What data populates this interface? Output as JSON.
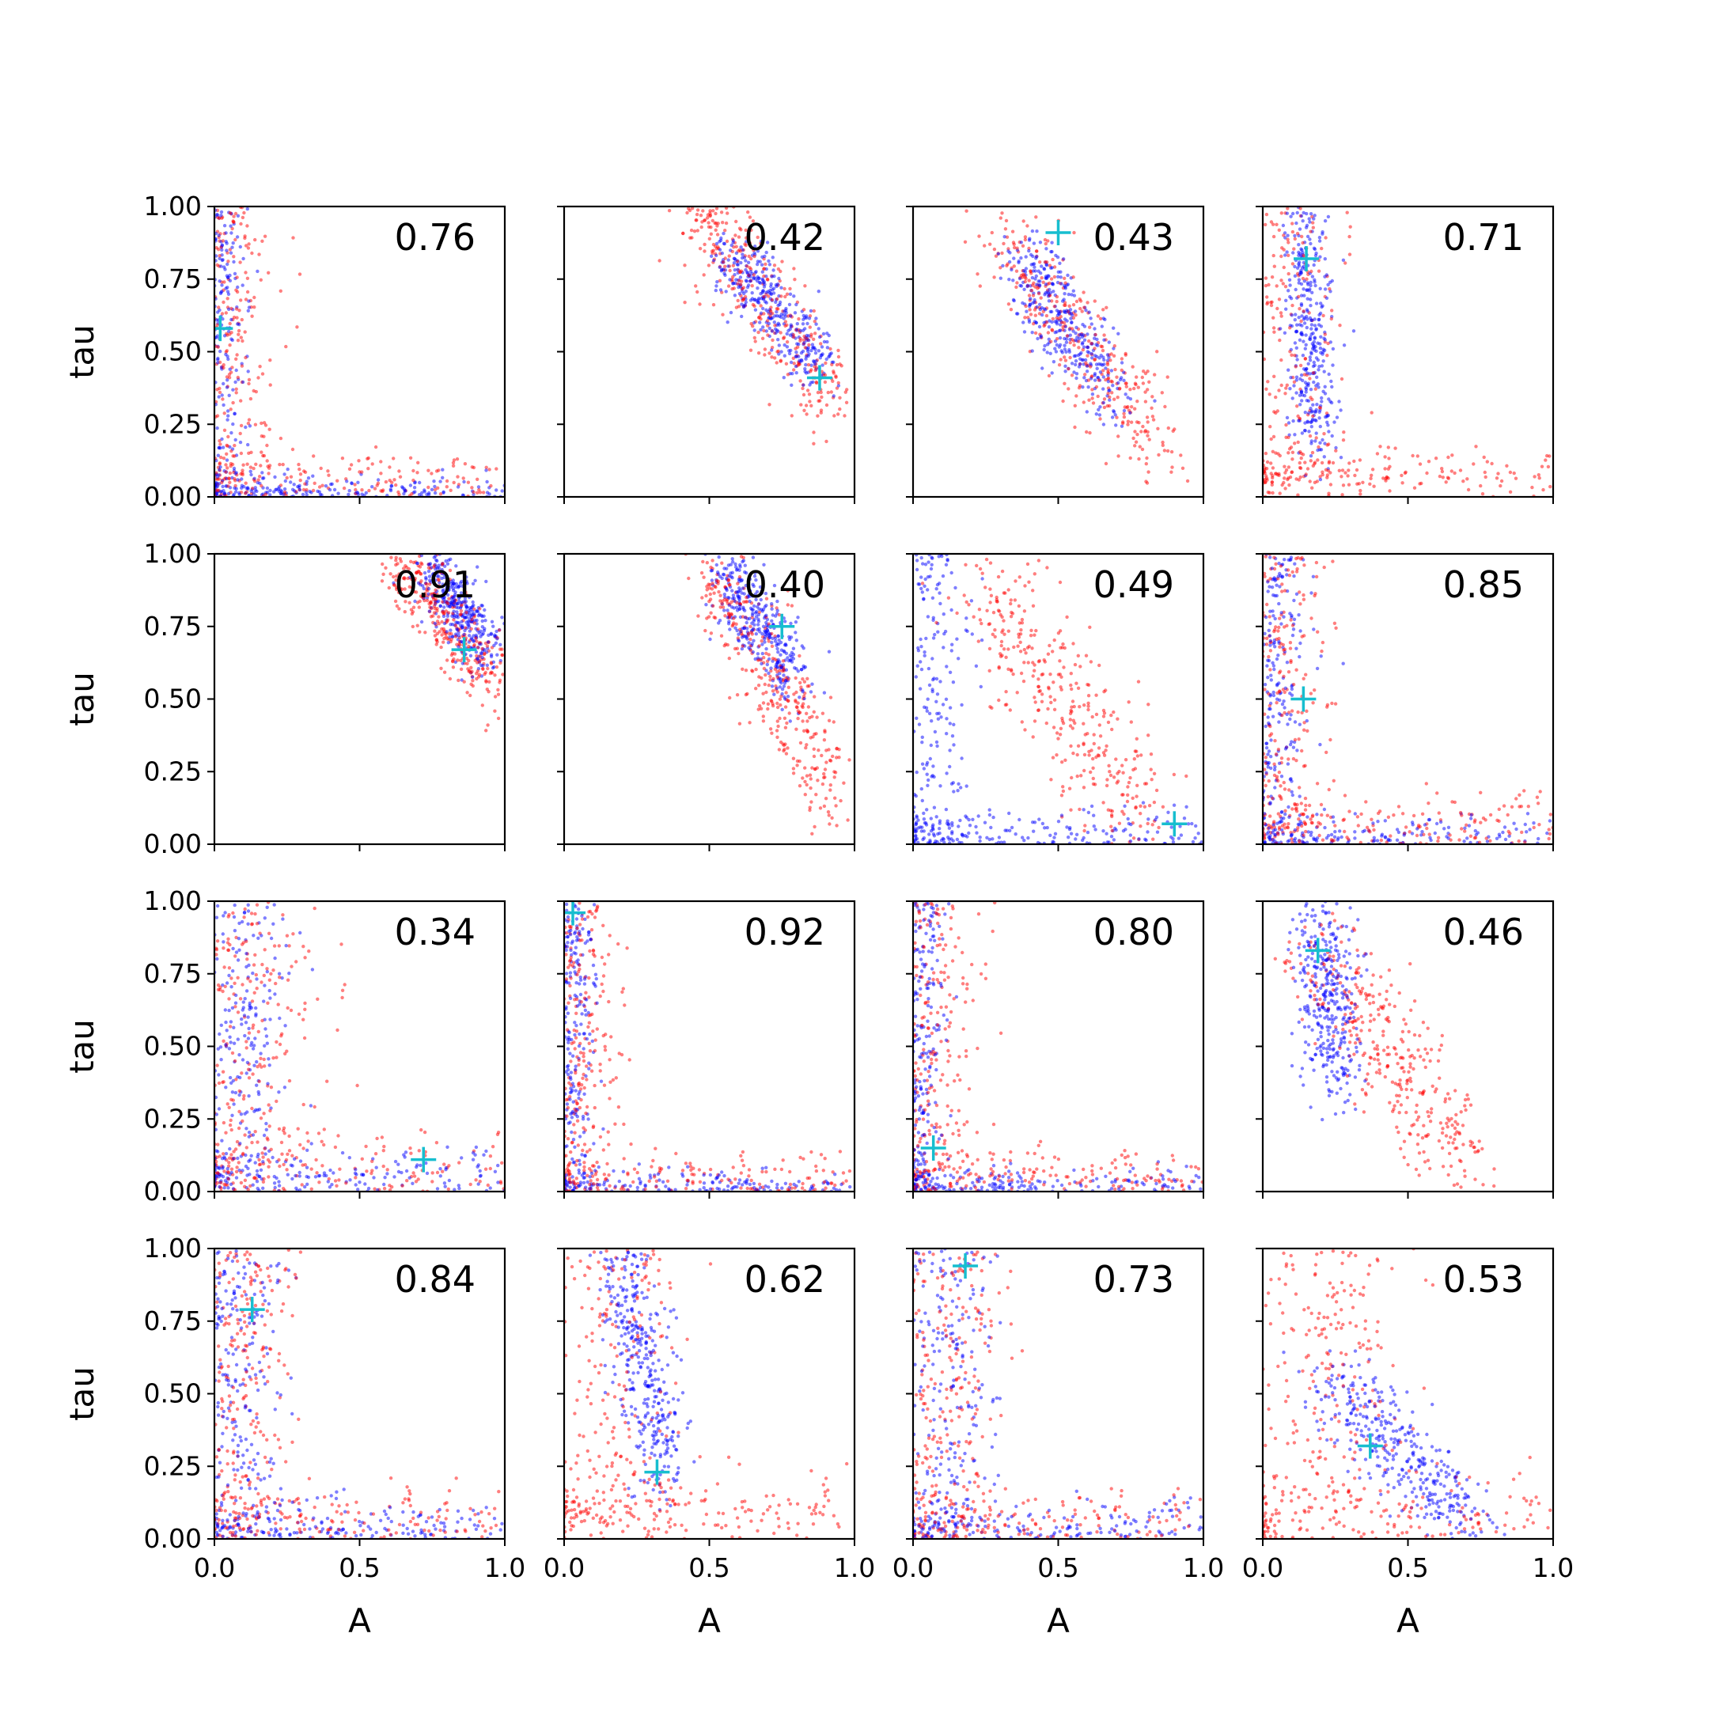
{
  "chart_data": {
    "type": "scatter",
    "layout": {
      "rows": 4,
      "cols": 4,
      "sharex": true,
      "sharey": true
    },
    "xlabel": "A",
    "ylabel": "tau",
    "xlim": [
      0.0,
      1.0
    ],
    "ylim": [
      0.0,
      1.0
    ],
    "x_ticks": [
      0.0,
      0.5,
      1.0
    ],
    "x_tick_labels": [
      "0.0",
      "0.5",
      "1.0"
    ],
    "y_ticks": [
      0.0,
      0.25,
      0.5,
      0.75,
      1.0
    ],
    "y_tick_labels": [
      "0.00",
      "0.25",
      "0.50",
      "0.75",
      "1.00"
    ],
    "grid": false,
    "colors": {
      "series_a": "#0000ff",
      "series_b": "#ff0000",
      "marker": "#17becf"
    },
    "panels": [
      {
        "label": "0.76",
        "marker": [
          0.02,
          0.58
        ],
        "blue": {
          "shape": "L",
          "a0": 0.02,
          "b0": 0.02,
          "spread": 0.03
        },
        "red": {
          "shape": "L",
          "a0": 0.04,
          "b0": 0.05,
          "spread": 0.06
        }
      },
      {
        "label": "0.42",
        "marker": [
          0.88,
          0.41
        ],
        "blue": {
          "shape": "band",
          "from": [
            0.55,
            0.85
          ],
          "to": [
            0.88,
            0.45
          ],
          "sx": 0.04,
          "sy": 0.06
        },
        "red": {
          "shape": "band",
          "from": [
            0.45,
            0.98
          ],
          "to": [
            0.92,
            0.35
          ],
          "sx": 0.05,
          "sy": 0.08
        }
      },
      {
        "label": "0.43",
        "marker": [
          0.5,
          0.91
        ],
        "blue": {
          "shape": "band",
          "from": [
            0.38,
            0.82
          ],
          "to": [
            0.68,
            0.35
          ],
          "sx": 0.05,
          "sy": 0.07
        },
        "red": {
          "shape": "band",
          "from": [
            0.3,
            0.9
          ],
          "to": [
            0.85,
            0.18
          ],
          "sx": 0.06,
          "sy": 0.08
        }
      },
      {
        "label": "0.71",
        "marker": [
          0.15,
          0.82
        ],
        "blue": {
          "shape": "band",
          "from": [
            0.13,
            0.95
          ],
          "to": [
            0.18,
            0.2
          ],
          "sx": 0.04,
          "sy": 0.08
        },
        "red": {
          "shape": "L",
          "a0": 0.12,
          "b0": 0.08,
          "spread": 0.05
        }
      },
      {
        "label": "0.91",
        "marker": [
          0.86,
          0.67
        ],
        "blue": {
          "shape": "band",
          "from": [
            0.75,
            0.95
          ],
          "to": [
            0.95,
            0.65
          ],
          "sx": 0.04,
          "sy": 0.05
        },
        "red": {
          "shape": "band",
          "from": [
            0.62,
            1.0
          ],
          "to": [
            0.97,
            0.55
          ],
          "sx": 0.05,
          "sy": 0.06
        }
      },
      {
        "label": "0.40",
        "marker": [
          0.75,
          0.75
        ],
        "blue": {
          "shape": "band",
          "from": [
            0.55,
            0.95
          ],
          "to": [
            0.8,
            0.55
          ],
          "sx": 0.04,
          "sy": 0.06
        },
        "red": {
          "shape": "band",
          "from": [
            0.5,
            0.95
          ],
          "to": [
            0.95,
            0.15
          ],
          "sx": 0.05,
          "sy": 0.09
        }
      },
      {
        "label": "0.49",
        "marker": [
          0.9,
          0.07
        ],
        "blue": {
          "shape": "L",
          "a0": 0.06,
          "b0": 0.04,
          "spread": 0.04
        },
        "red": {
          "shape": "band",
          "from": [
            0.25,
            0.9
          ],
          "to": [
            0.8,
            0.05
          ],
          "sx": 0.08,
          "sy": 0.1
        }
      },
      {
        "label": "0.85",
        "marker": [
          0.14,
          0.5
        ],
        "blue": {
          "shape": "L",
          "a0": 0.03,
          "b0": 0.03,
          "spread": 0.04
        },
        "red": {
          "shape": "L",
          "a0": 0.06,
          "b0": 0.06,
          "spread": 0.06
        }
      },
      {
        "label": "0.34",
        "marker": [
          0.72,
          0.11
        ],
        "blue": {
          "shape": "L",
          "a0": 0.1,
          "b0": 0.05,
          "spread": 0.05
        },
        "red": {
          "shape": "L",
          "a0": 0.12,
          "b0": 0.08,
          "spread": 0.08
        }
      },
      {
        "label": "0.92",
        "marker": [
          0.03,
          0.96
        ],
        "blue": {
          "shape": "L",
          "a0": 0.02,
          "b0": 0.02,
          "spread": 0.03
        },
        "red": {
          "shape": "L",
          "a0": 0.04,
          "b0": 0.04,
          "spread": 0.05
        }
      },
      {
        "label": "0.80",
        "marker": [
          0.07,
          0.15
        ],
        "blue": {
          "shape": "L",
          "a0": 0.03,
          "b0": 0.02,
          "spread": 0.03
        },
        "red": {
          "shape": "L",
          "a0": 0.06,
          "b0": 0.05,
          "spread": 0.06
        }
      },
      {
        "label": "0.46",
        "marker": [
          0.19,
          0.83
        ],
        "blue": {
          "shape": "band",
          "from": [
            0.2,
            0.95
          ],
          "to": [
            0.25,
            0.4
          ],
          "sx": 0.05,
          "sy": 0.1
        },
        "red": {
          "shape": "band",
          "from": [
            0.2,
            0.85
          ],
          "to": [
            0.7,
            0.08
          ],
          "sx": 0.08,
          "sy": 0.08
        }
      },
      {
        "label": "0.84",
        "marker": [
          0.13,
          0.79
        ],
        "blue": {
          "shape": "L",
          "a0": 0.08,
          "b0": 0.03,
          "spread": 0.05
        },
        "red": {
          "shape": "L",
          "a0": 0.1,
          "b0": 0.06,
          "spread": 0.06
        }
      },
      {
        "label": "0.62",
        "marker": [
          0.32,
          0.23
        ],
        "blue": {
          "shape": "band",
          "from": [
            0.2,
            0.95
          ],
          "to": [
            0.35,
            0.25
          ],
          "sx": 0.05,
          "sy": 0.08
        },
        "red": {
          "shape": "L",
          "a0": 0.2,
          "b0": 0.1,
          "spread": 0.07
        }
      },
      {
        "label": "0.73",
        "marker": [
          0.18,
          0.94
        ],
        "blue": {
          "shape": "L",
          "a0": 0.14,
          "b0": 0.04,
          "spread": 0.05
        },
        "red": {
          "shape": "L",
          "a0": 0.12,
          "b0": 0.06,
          "spread": 0.06
        }
      },
      {
        "label": "0.53",
        "marker": [
          0.37,
          0.32
        ],
        "blue": {
          "shape": "band",
          "from": [
            0.25,
            0.55
          ],
          "to": [
            0.7,
            0.05
          ],
          "sx": 0.07,
          "sy": 0.06
        },
        "red": {
          "shape": "L",
          "a0": 0.25,
          "b0": 0.08,
          "spread": 0.08
        }
      }
    ]
  }
}
